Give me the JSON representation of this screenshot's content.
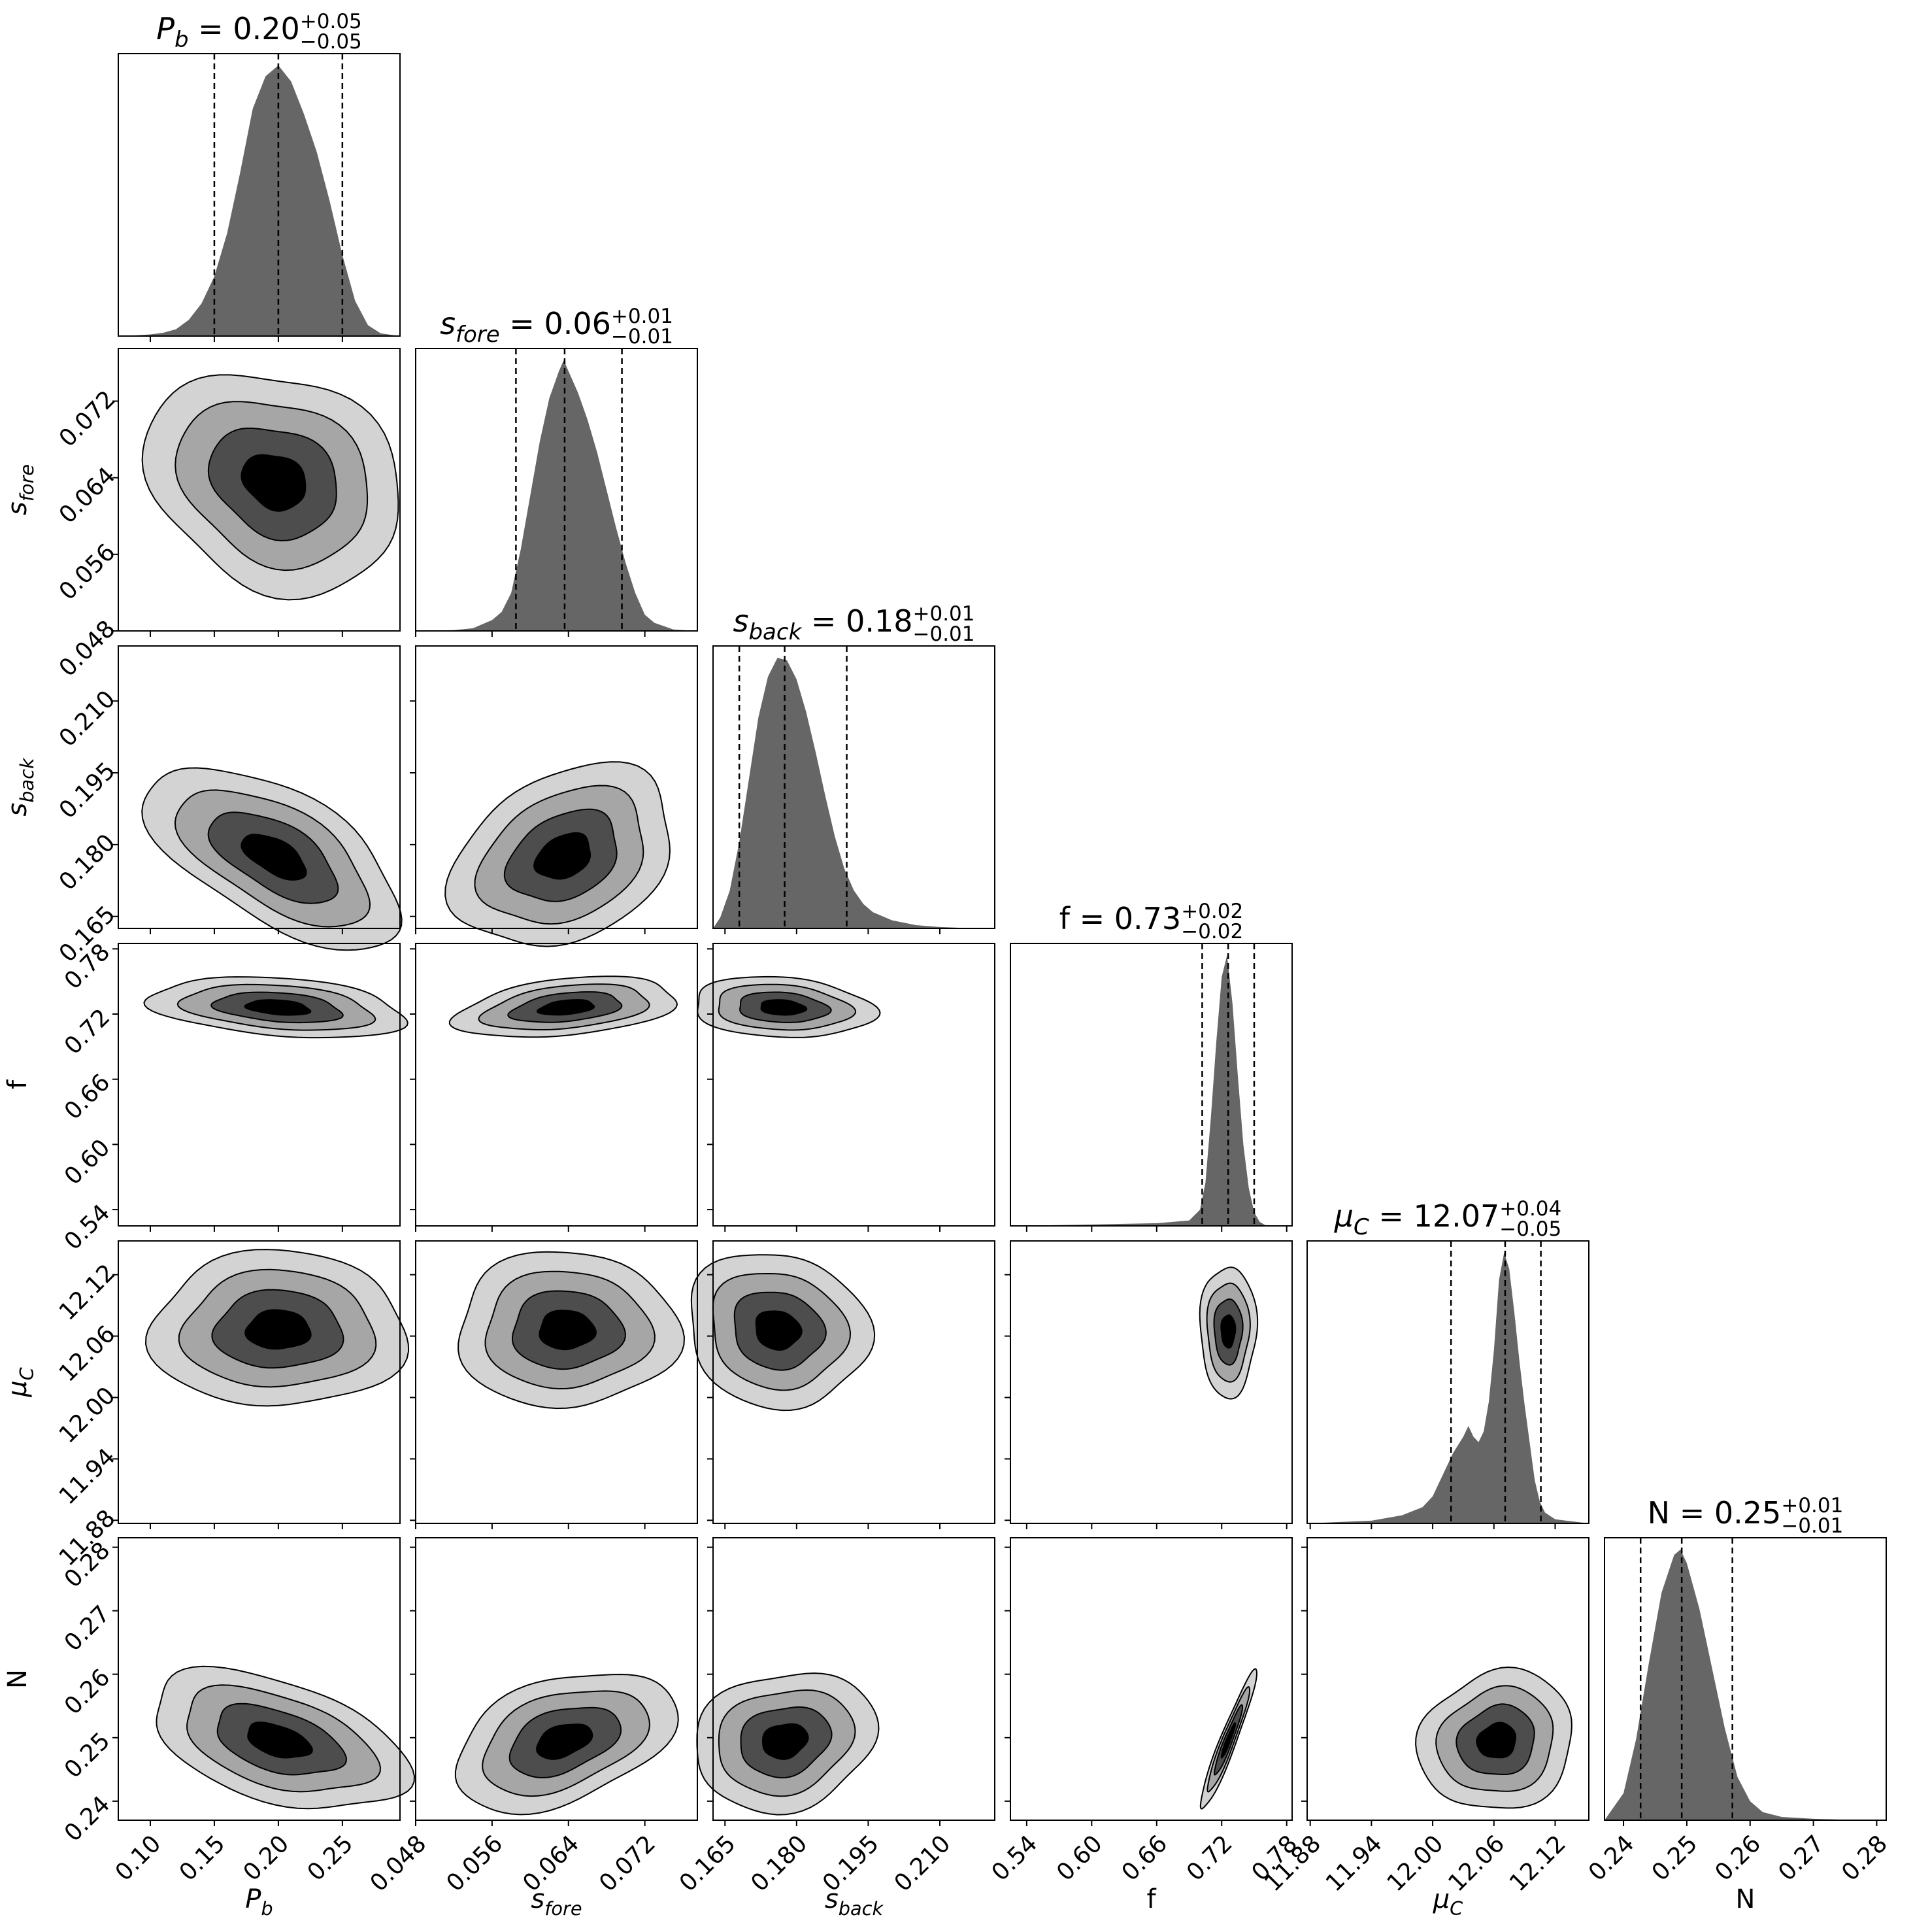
{
  "chart_data": {
    "type": "corner",
    "parameters": [
      {
        "key": "Pb",
        "label_base": "P",
        "label_sub": "b",
        "italic": true,
        "median": "0.20",
        "plus": "+0.05",
        "minus": "−0.05",
        "range": [
          0.075,
          0.295
        ],
        "ticks": [
          "0.10",
          "0.15",
          "0.20",
          "0.25"
        ],
        "q16": 0.15,
        "q50": 0.2,
        "q84": 0.25
      },
      {
        "key": "sfore",
        "label_base": "s",
        "label_sub": "fore",
        "italic": true,
        "median": "0.06",
        "plus": "+0.01",
        "minus": "−0.01",
        "range": [
          0.048,
          0.0775
        ],
        "ticks": [
          "0.048",
          "0.056",
          "0.064",
          "0.072"
        ],
        "q16": 0.0585,
        "q50": 0.0636,
        "q84": 0.0696
      },
      {
        "key": "sback",
        "label_base": "s",
        "label_sub": "back",
        "italic": true,
        "median": "0.18",
        "plus": "+0.01",
        "minus": "−0.01",
        "range": [
          0.1625,
          0.2215
        ],
        "ticks": [
          "0.165",
          "0.180",
          "0.195",
          "0.210"
        ],
        "q16": 0.168,
        "q50": 0.1775,
        "q84": 0.1905
      },
      {
        "key": "f",
        "label_base": "f",
        "label_sub": "",
        "italic": false,
        "median": "0.73",
        "plus": "+0.02",
        "minus": "−0.02",
        "range": [
          0.525,
          0.785
        ],
        "ticks": [
          "0.54",
          "0.60",
          "0.66",
          "0.72",
          "0.78"
        ],
        "q16": 0.702,
        "q50": 0.726,
        "q84": 0.75
      },
      {
        "key": "muC",
        "label_base": "μ",
        "label_sub": "C",
        "italic": true,
        "median": "12.07",
        "plus": "+0.04",
        "minus": "−0.05",
        "range": [
          11.877,
          12.153
        ],
        "ticks": [
          "11.88",
          "11.94",
          "12.00",
          "12.06",
          "12.12"
        ],
        "q16": 12.018,
        "q50": 12.071,
        "q84": 12.106
      },
      {
        "key": "N",
        "label_base": "N",
        "label_sub": "",
        "italic": false,
        "median": "0.25",
        "plus": "+0.01",
        "minus": "−0.01",
        "range": [
          0.237,
          0.2815
        ],
        "ticks": [
          "0.24",
          "0.25",
          "0.26",
          "0.27",
          "0.28"
        ],
        "q16": 0.2427,
        "q50": 0.2492,
        "q84": 0.2572
      }
    ],
    "histograms": [
      {
        "x": [
          0.075,
          0.09,
          0.1,
          0.11,
          0.12,
          0.13,
          0.14,
          0.15,
          0.16,
          0.17,
          0.18,
          0.19,
          0.2,
          0.21,
          0.22,
          0.23,
          0.24,
          0.25,
          0.26,
          0.27,
          0.28,
          0.295
        ],
        "y": [
          0.0,
          0.003,
          0.006,
          0.012,
          0.025,
          0.06,
          0.12,
          0.22,
          0.38,
          0.6,
          0.84,
          0.96,
          1.0,
          0.94,
          0.82,
          0.68,
          0.5,
          0.3,
          0.13,
          0.04,
          0.01,
          0.0
        ]
      },
      {
        "x": [
          0.048,
          0.052,
          0.054,
          0.056,
          0.057,
          0.058,
          0.059,
          0.06,
          0.061,
          0.062,
          0.063,
          0.0635,
          0.064,
          0.065,
          0.066,
          0.067,
          0.068,
          0.069,
          0.07,
          0.071,
          0.072,
          0.073,
          0.075,
          0.0775
        ],
        "y": [
          0.0,
          0.003,
          0.01,
          0.04,
          0.07,
          0.14,
          0.3,
          0.5,
          0.7,
          0.86,
          0.96,
          1.0,
          0.96,
          0.88,
          0.78,
          0.66,
          0.52,
          0.38,
          0.25,
          0.14,
          0.06,
          0.03,
          0.005,
          0.0
        ]
      },
      {
        "x": [
          0.1625,
          0.164,
          0.166,
          0.168,
          0.17,
          0.172,
          0.174,
          0.176,
          0.178,
          0.18,
          0.182,
          0.184,
          0.186,
          0.188,
          0.19,
          0.192,
          0.194,
          0.196,
          0.2,
          0.205,
          0.21,
          0.215,
          0.2215
        ],
        "y": [
          0.0,
          0.04,
          0.14,
          0.32,
          0.55,
          0.78,
          0.93,
          1.0,
          0.99,
          0.92,
          0.8,
          0.65,
          0.49,
          0.34,
          0.22,
          0.14,
          0.09,
          0.06,
          0.03,
          0.012,
          0.005,
          0.002,
          0.0
        ]
      },
      {
        "x": [
          0.525,
          0.6,
          0.66,
          0.69,
          0.7,
          0.705,
          0.71,
          0.715,
          0.72,
          0.725,
          0.73,
          0.735,
          0.74,
          0.745,
          0.75,
          0.755,
          0.76,
          0.785
        ],
        "y": [
          0.0,
          0.005,
          0.01,
          0.02,
          0.06,
          0.16,
          0.4,
          0.68,
          0.92,
          1.0,
          0.82,
          0.55,
          0.3,
          0.14,
          0.05,
          0.015,
          0.003,
          0.0
        ]
      },
      {
        "x": [
          11.877,
          11.94,
          11.97,
          11.99,
          12.0,
          12.01,
          12.02,
          12.03,
          12.035,
          12.04,
          12.045,
          12.05,
          12.055,
          12.06,
          12.065,
          12.07,
          12.075,
          12.08,
          12.085,
          12.09,
          12.095,
          12.1,
          12.105,
          12.11,
          12.12,
          12.153
        ],
        "y": [
          0.0,
          0.01,
          0.03,
          0.06,
          0.1,
          0.18,
          0.26,
          0.32,
          0.36,
          0.32,
          0.3,
          0.34,
          0.45,
          0.64,
          0.9,
          1.0,
          0.94,
          0.78,
          0.6,
          0.44,
          0.3,
          0.16,
          0.08,
          0.04,
          0.015,
          0.0
        ]
      },
      {
        "x": [
          0.237,
          0.24,
          0.242,
          0.244,
          0.246,
          0.248,
          0.249,
          0.25,
          0.252,
          0.254,
          0.256,
          0.258,
          0.26,
          0.262,
          0.265,
          0.27,
          0.275,
          0.2815
        ],
        "y": [
          0.0,
          0.1,
          0.3,
          0.58,
          0.84,
          0.98,
          1.0,
          0.95,
          0.78,
          0.56,
          0.34,
          0.16,
          0.07,
          0.03,
          0.012,
          0.005,
          0.002,
          0.0
        ]
      }
    ],
    "contours": [
      {
        "i": 1,
        "j": 0,
        "cx": 0.197,
        "cy": 0.0636,
        "sx": 0.05,
        "sy": 0.0058,
        "rho": -0.2
      },
      {
        "i": 2,
        "j": 0,
        "cx": 0.197,
        "cy": 0.1775,
        "sx": 0.05,
        "sy": 0.0095,
        "rho": -0.6
      },
      {
        "i": 2,
        "j": 1,
        "cx": 0.0635,
        "cy": 0.1775,
        "sx": 0.0058,
        "sy": 0.0095,
        "rho": 0.3
      },
      {
        "i": 3,
        "j": 0,
        "cx": 0.2,
        "cy": 0.726,
        "sx": 0.05,
        "sy": 0.014,
        "rho": -0.3
      },
      {
        "i": 3,
        "j": 1,
        "cx": 0.0638,
        "cy": 0.726,
        "sx": 0.0058,
        "sy": 0.014,
        "rho": 0.35
      },
      {
        "i": 3,
        "j": 2,
        "cx": 0.177,
        "cy": 0.726,
        "sx": 0.0095,
        "sy": 0.014,
        "rho": -0.15
      },
      {
        "i": 4,
        "j": 0,
        "cx": 0.2,
        "cy": 12.066,
        "sx": 0.05,
        "sy": 0.038,
        "rho": 0.0
      },
      {
        "i": 4,
        "j": 1,
        "cx": 0.0638,
        "cy": 12.066,
        "sx": 0.0058,
        "sy": 0.038,
        "rho": 0.0
      },
      {
        "i": 4,
        "j": 2,
        "cx": 0.176,
        "cy": 12.066,
        "sx": 0.0095,
        "sy": 0.038,
        "rho": -0.1
      },
      {
        "i": 4,
        "j": 3,
        "cx": 0.726,
        "cy": 12.065,
        "sx": 0.013,
        "sy": 0.032,
        "rho": 0.0
      },
      {
        "i": 5,
        "j": 0,
        "cx": 0.2,
        "cy": 0.2495,
        "sx": 0.05,
        "sy": 0.0055,
        "rho": -0.45
      },
      {
        "i": 5,
        "j": 1,
        "cx": 0.0635,
        "cy": 0.2495,
        "sx": 0.0058,
        "sy": 0.0055,
        "rho": 0.4
      },
      {
        "i": 5,
        "j": 2,
        "cx": 0.1775,
        "cy": 0.2495,
        "sx": 0.0095,
        "sy": 0.0055,
        "rho": 0.15
      },
      {
        "i": 5,
        "j": 3,
        "cx": 0.726,
        "cy": 0.2495,
        "sx": 0.013,
        "sy": 0.0055,
        "rho": 0.95
      },
      {
        "i": 5,
        "j": 4,
        "cx": 12.063,
        "cy": 0.2495,
        "sx": 0.038,
        "sy": 0.0055,
        "rho": 0.1
      }
    ],
    "contour_levels": [
      0.5,
      1.0,
      1.5,
      2.0
    ],
    "contour_fills": [
      "#d3d3d3",
      "#a6a6a6",
      "#4d4d4d",
      "#000000"
    ],
    "hist_color": "#666666"
  }
}
